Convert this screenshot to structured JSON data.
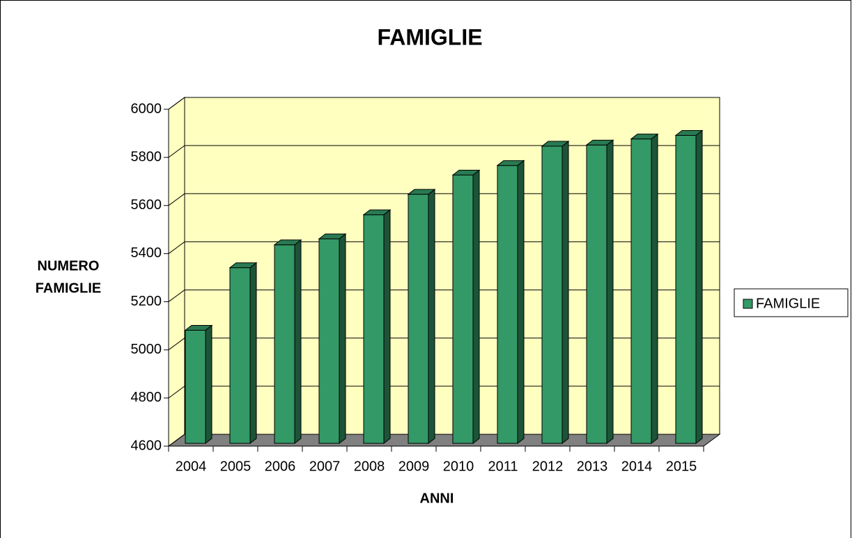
{
  "chart_data": {
    "type": "bar3d",
    "title": "FAMIGLIE",
    "x_label": "ANNI",
    "y_label": [
      "NUMERO",
      "FAMIGLIE"
    ],
    "categories": [
      "2004",
      "2005",
      "2006",
      "2007",
      "2008",
      "2009",
      "2010",
      "2011",
      "2012",
      "2013",
      "2014",
      "2015"
    ],
    "series": [
      {
        "name": "FAMIGLIE",
        "color": "#339966",
        "values": [
          5070,
          5330,
          5425,
          5450,
          5550,
          5635,
          5715,
          5755,
          5835,
          5840,
          5865,
          5880
        ]
      }
    ],
    "ylim": [
      4600,
      6000
    ],
    "yticks": [
      4600,
      4800,
      5000,
      5200,
      5400,
      5600,
      5800,
      6000
    ],
    "grid": true,
    "legend": "right"
  }
}
